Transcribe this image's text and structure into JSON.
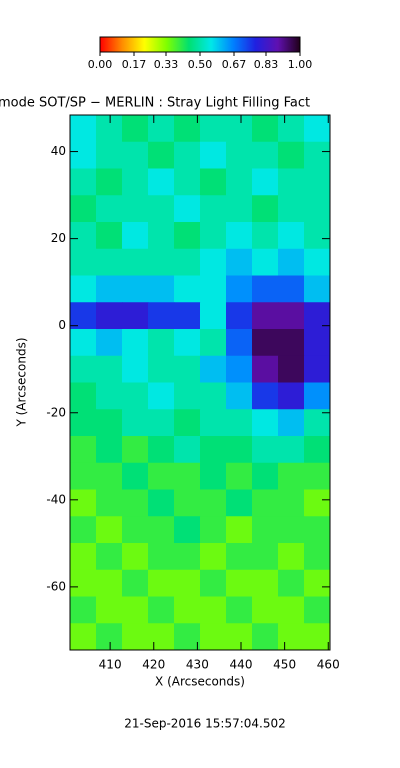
{
  "chart_data": {
    "type": "heatmap",
    "title": "mode SOT/SP − MERLIN : Stray Light Filling Fact",
    "xlabel": "X (Arcseconds)",
    "ylabel": "Y (Arcseconds)",
    "footer": "21-Sep-2016 15:57:04.502",
    "xlim": [
      400.8,
      460.4
    ],
    "ylim": [
      -74.5,
      48.4
    ],
    "xticks": [
      410,
      420,
      430,
      440,
      450,
      460
    ],
    "yticks": [
      -60,
      -40,
      -20,
      0,
      20,
      40
    ],
    "clim": [
      0,
      1
    ],
    "colormap": [
      "#ff0000",
      "#ff8c00",
      "#ffff00",
      "#7fff00",
      "#00e070",
      "#00e8e8",
      "#0080ff",
      "#2020e0",
      "#6010b0",
      "#200018"
    ],
    "cticks": [
      {
        "value": 0,
        "label": "0.00"
      },
      {
        "value": 0.17,
        "label": "0.17"
      },
      {
        "value": 0.33,
        "label": "0.33"
      },
      {
        "value": 0.5,
        "label": "0.50"
      },
      {
        "value": 0.67,
        "label": "0.67"
      },
      {
        "value": 0.83,
        "label": "0.83"
      },
      {
        "value": 1,
        "label": "1.00"
      }
    ],
    "z": [
      [
        0.55,
        0.5,
        0.45,
        0.5,
        0.45,
        0.5,
        0.5,
        0.45,
        0.5,
        0.55
      ],
      [
        0.55,
        0.5,
        0.5,
        0.45,
        0.5,
        0.55,
        0.5,
        0.5,
        0.45,
        0.5
      ],
      [
        0.5,
        0.45,
        0.5,
        0.55,
        0.5,
        0.45,
        0.5,
        0.55,
        0.5,
        0.5
      ],
      [
        0.45,
        0.5,
        0.5,
        0.5,
        0.55,
        0.5,
        0.5,
        0.45,
        0.5,
        0.5
      ],
      [
        0.5,
        0.45,
        0.55,
        0.5,
        0.45,
        0.5,
        0.55,
        0.5,
        0.55,
        0.5
      ],
      [
        0.5,
        0.5,
        0.5,
        0.5,
        0.5,
        0.55,
        0.6,
        0.55,
        0.6,
        0.55
      ],
      [
        0.55,
        0.6,
        0.6,
        0.6,
        0.55,
        0.55,
        0.65,
        0.7,
        0.7,
        0.6
      ],
      [
        0.75,
        0.8,
        0.8,
        0.75,
        0.75,
        0.55,
        0.75,
        0.9,
        0.9,
        0.8
      ],
      [
        0.55,
        0.6,
        0.55,
        0.5,
        0.55,
        0.5,
        0.7,
        0.95,
        0.95,
        0.8
      ],
      [
        0.5,
        0.5,
        0.55,
        0.5,
        0.5,
        0.6,
        0.65,
        0.9,
        0.95,
        0.8
      ],
      [
        0.45,
        0.5,
        0.5,
        0.55,
        0.5,
        0.5,
        0.6,
        0.75,
        0.8,
        0.65
      ],
      [
        0.45,
        0.45,
        0.5,
        0.5,
        0.45,
        0.5,
        0.5,
        0.55,
        0.6,
        0.5
      ],
      [
        0.4,
        0.45,
        0.4,
        0.45,
        0.5,
        0.45,
        0.45,
        0.5,
        0.5,
        0.45
      ],
      [
        0.4,
        0.4,
        0.45,
        0.4,
        0.4,
        0.45,
        0.4,
        0.45,
        0.4,
        0.4
      ],
      [
        0.35,
        0.4,
        0.4,
        0.45,
        0.4,
        0.4,
        0.45,
        0.4,
        0.4,
        0.35
      ],
      [
        0.4,
        0.35,
        0.4,
        0.4,
        0.45,
        0.4,
        0.35,
        0.4,
        0.4,
        0.4
      ],
      [
        0.35,
        0.4,
        0.35,
        0.4,
        0.4,
        0.35,
        0.4,
        0.4,
        0.35,
        0.4
      ],
      [
        0.35,
        0.35,
        0.4,
        0.35,
        0.35,
        0.4,
        0.35,
        0.35,
        0.4,
        0.35
      ],
      [
        0.4,
        0.35,
        0.35,
        0.4,
        0.35,
        0.35,
        0.4,
        0.35,
        0.35,
        0.4
      ],
      [
        0.35,
        0.4,
        0.35,
        0.35,
        0.4,
        0.35,
        0.35,
        0.4,
        0.35,
        0.35
      ]
    ]
  }
}
